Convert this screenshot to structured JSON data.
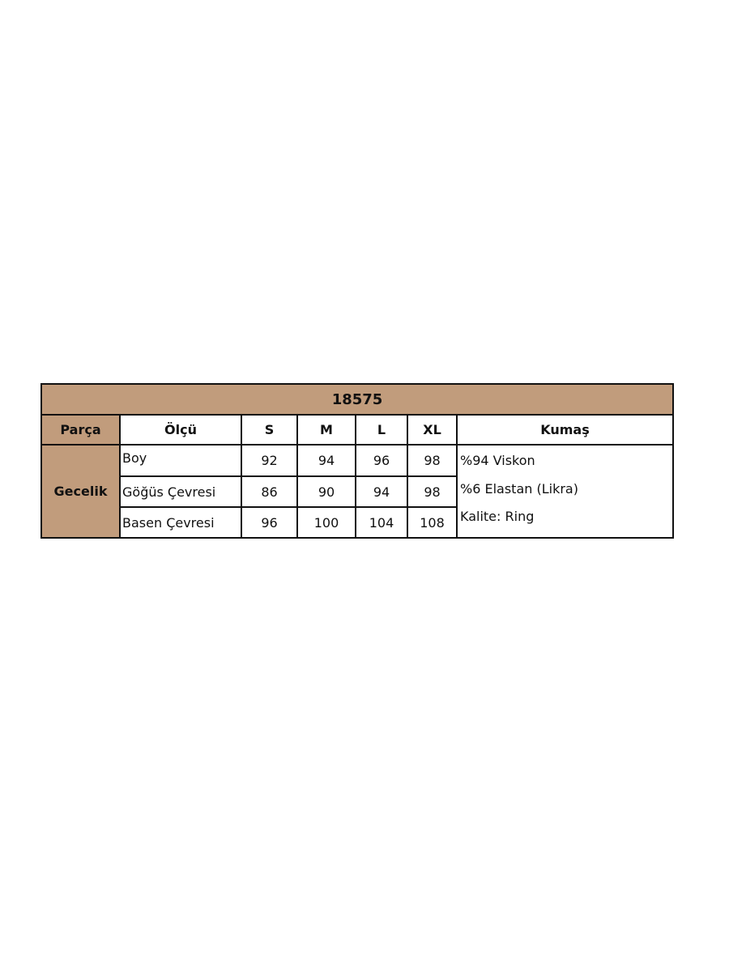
{
  "title": "18575",
  "headers": {
    "part": "Parça",
    "measure": "Ölçü",
    "sizes": [
      "S",
      "M",
      "L",
      "XL"
    ],
    "fabric": "Kumaş"
  },
  "part_name": "Gecelik",
  "rows": [
    {
      "label": "Boy",
      "values": [
        "92",
        "94",
        "96",
        "98"
      ]
    },
    {
      "label": "Göğüs Çevresi",
      "values": [
        "86",
        "90",
        "94",
        "98"
      ]
    },
    {
      "label": "Basen Çevresi",
      "values": [
        "96",
        "100",
        "104",
        "108"
      ]
    }
  ],
  "fabric_lines": [
    "%94 Viskon",
    "%6 Elastan (Likra)",
    "Kalite: Ring"
  ],
  "colors": {
    "header_bg": "#C19C7C",
    "border": "#111111"
  }
}
